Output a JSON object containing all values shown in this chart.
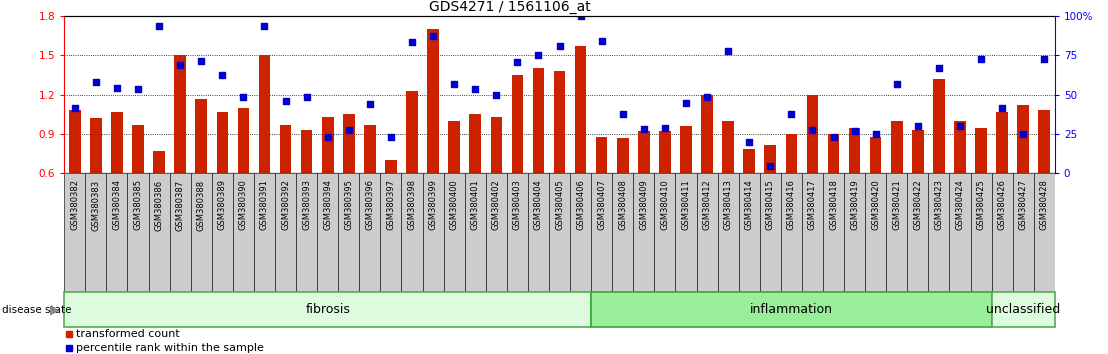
{
  "title": "GDS4271 / 1561106_at",
  "samples": [
    "GSM380382",
    "GSM380383",
    "GSM380384",
    "GSM380385",
    "GSM380386",
    "GSM380387",
    "GSM380388",
    "GSM380389",
    "GSM380390",
    "GSM380391",
    "GSM380392",
    "GSM380393",
    "GSM380394",
    "GSM380395",
    "GSM380396",
    "GSM380397",
    "GSM380398",
    "GSM380399",
    "GSM380400",
    "GSM380401",
    "GSM380402",
    "GSM380403",
    "GSM380404",
    "GSM380405",
    "GSM380406",
    "GSM380407",
    "GSM380408",
    "GSM380409",
    "GSM380410",
    "GSM380411",
    "GSM380412",
    "GSM380413",
    "GSM380414",
    "GSM380415",
    "GSM380416",
    "GSM380417",
    "GSM380418",
    "GSM380419",
    "GSM380420",
    "GSM380421",
    "GSM380422",
    "GSM380423",
    "GSM380424",
    "GSM380425",
    "GSM380426",
    "GSM380427",
    "GSM380428"
  ],
  "bar_values": [
    1.08,
    1.02,
    1.07,
    0.97,
    0.77,
    1.5,
    1.17,
    1.07,
    1.1,
    1.5,
    0.97,
    0.93,
    1.03,
    1.05,
    0.97,
    0.7,
    1.23,
    1.7,
    1.0,
    1.05,
    1.03,
    1.35,
    1.4,
    1.38,
    1.57,
    0.88,
    0.87,
    0.92,
    0.92,
    0.96,
    1.2,
    1.0,
    0.79,
    0.82,
    0.9,
    1.2,
    0.9,
    0.95,
    0.88,
    1.0,
    0.93,
    1.32,
    1.0,
    0.95,
    1.07,
    1.12,
    1.08
  ],
  "dot_values": [
    1.1,
    1.3,
    1.25,
    1.24,
    1.72,
    1.43,
    1.46,
    1.35,
    1.18,
    1.72,
    1.15,
    1.18,
    0.88,
    0.93,
    1.13,
    0.88,
    1.6,
    1.65,
    1.28,
    1.24,
    1.2,
    1.45,
    1.5,
    1.57,
    1.8,
    1.61,
    1.05,
    0.94,
    0.95,
    1.14,
    1.18,
    1.53,
    0.84,
    0.66,
    1.05,
    0.93,
    0.88,
    0.92,
    0.9,
    1.28,
    0.96,
    1.4,
    0.96,
    1.47,
    1.1,
    0.9,
    1.47
  ],
  "groups": [
    {
      "label": "fibrosis",
      "start": 0,
      "end": 25,
      "color": "#ddfcdd",
      "border": "#55aa55"
    },
    {
      "label": "inflammation",
      "start": 25,
      "end": 44,
      "color": "#99ee99",
      "border": "#33aa33"
    },
    {
      "label": "unclassified",
      "start": 44,
      "end": 47,
      "color": "#ddfcdd",
      "border": "#55aa55"
    }
  ],
  "ylim_left": [
    0.6,
    1.8
  ],
  "ylim_right": [
    0,
    100
  ],
  "yticks_left": [
    0.6,
    0.9,
    1.2,
    1.5,
    1.8
  ],
  "yticks_right": [
    0,
    25,
    50,
    75,
    100
  ],
  "hlines": [
    0.9,
    1.2,
    1.5
  ],
  "bar_color": "#cc2200",
  "dot_color": "#0000cc",
  "bar_width": 0.55,
  "right_ytick_labels": [
    "0",
    "25",
    "50",
    "75",
    "100%"
  ],
  "legend_items": [
    {
      "label": "transformed count",
      "color": "#cc2200"
    },
    {
      "label": "percentile rank within the sample",
      "color": "#0000cc"
    }
  ]
}
